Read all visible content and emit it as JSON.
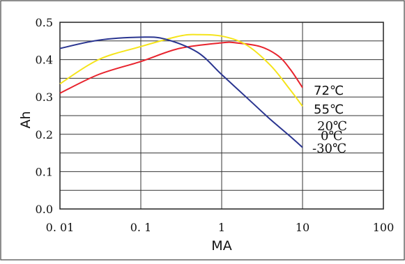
{
  "chart_data": {
    "type": "line",
    "xlabel": "MA",
    "ylabel": "Ah",
    "x_scale": "log",
    "xlim": [
      0.01,
      100
    ],
    "ylim": [
      0.0,
      0.5
    ],
    "x_ticks": [
      "0. 01",
      "0. 1",
      "1",
      "10",
      "100"
    ],
    "y_ticks": [
      "0.0",
      "0.1",
      "0.2",
      "0.3",
      "0.4",
      "0.5"
    ],
    "grid": true,
    "series": [
      {
        "name": "72℃",
        "color": "#e8232d",
        "x": [
          0.01,
          0.03,
          0.1,
          0.3,
          1,
          1.5,
          3,
          5,
          7,
          10
        ],
        "y": [
          0.31,
          0.36,
          0.395,
          0.43,
          0.445,
          0.445,
          0.435,
          0.41,
          0.375,
          0.325
        ]
      },
      {
        "name": "55℃",
        "color": "#f5e41a",
        "x": [
          0.01,
          0.03,
          0.1,
          0.3,
          0.5,
          1,
          2,
          4,
          7,
          10
        ],
        "y": [
          0.335,
          0.4,
          0.435,
          0.463,
          0.467,
          0.463,
          0.44,
          0.385,
          0.32,
          0.275
        ]
      },
      {
        "name": "20℃",
        "color": "#2a3590",
        "x": [
          0.01,
          0.03,
          0.1,
          0.2,
          0.5,
          1,
          2,
          4,
          7,
          10
        ],
        "y": [
          0.43,
          0.452,
          0.46,
          0.455,
          0.42,
          0.36,
          0.3,
          0.24,
          0.195,
          0.165
        ]
      }
    ],
    "annotations": [
      "72℃",
      "55℃",
      "20℃",
      "0℃",
      "-30℃"
    ]
  }
}
